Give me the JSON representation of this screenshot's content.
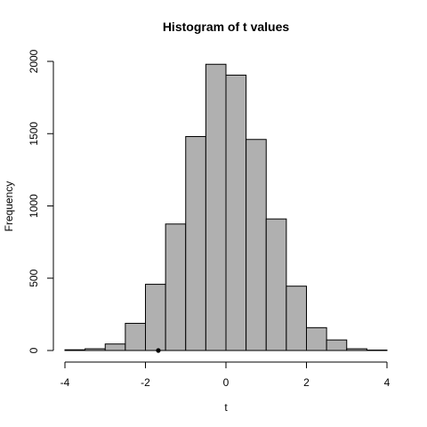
{
  "chart_data": {
    "type": "bar",
    "title": "Histogram of t values",
    "xlabel": "t",
    "ylabel": "Frequency",
    "bins": [
      {
        "x0": -4.0,
        "x1": -3.5,
        "value": 5
      },
      {
        "x0": -3.5,
        "x1": -3.0,
        "value": 12
      },
      {
        "x0": -3.0,
        "x1": -2.5,
        "value": 45
      },
      {
        "x0": -2.5,
        "x1": -2.0,
        "value": 188
      },
      {
        "x0": -2.0,
        "x1": -1.5,
        "value": 458
      },
      {
        "x0": -1.5,
        "x1": -1.0,
        "value": 875
      },
      {
        "x0": -1.0,
        "x1": -0.5,
        "value": 1480
      },
      {
        "x0": -0.5,
        "x1": 0.0,
        "value": 1980
      },
      {
        "x0": 0.0,
        "x1": 0.5,
        "value": 1905
      },
      {
        "x0": 0.5,
        "x1": 1.0,
        "value": 1460
      },
      {
        "x0": 1.0,
        "x1": 1.5,
        "value": 910
      },
      {
        "x0": 1.5,
        "x1": 2.0,
        "value": 445
      },
      {
        "x0": 2.0,
        "x1": 2.5,
        "value": 158
      },
      {
        "x0": 2.5,
        "x1": 3.0,
        "value": 73
      },
      {
        "x0": 3.0,
        "x1": 3.5,
        "value": 12
      },
      {
        "x0": 3.5,
        "x1": 4.0,
        "value": 3
      }
    ],
    "xlim": [
      -4,
      4
    ],
    "ylim": [
      0,
      2000
    ],
    "xticks": [
      -4,
      -2,
      0,
      2,
      4
    ],
    "yticks": [
      0,
      500,
      1000,
      1500,
      2000
    ],
    "marker": {
      "x": -1.68,
      "y": 0
    },
    "grid": false,
    "colors": {
      "bar_fill": "#b0b0b0",
      "bar_stroke": "#000000",
      "marker": "#000000"
    }
  }
}
